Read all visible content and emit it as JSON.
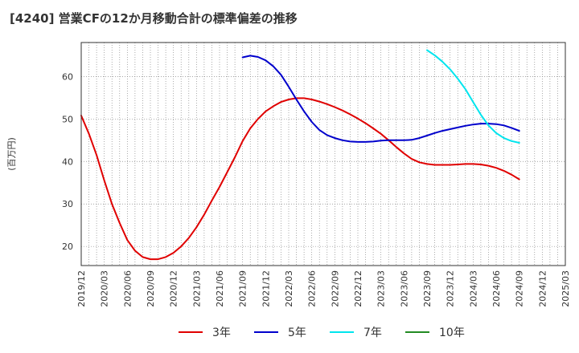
{
  "chart_data": {
    "type": "line",
    "title": "[4240]  営業CFの12か月移動合計の標準偏差の推移",
    "ylabel": "(百万円)",
    "xlabel": "",
    "ylim": [
      15.5,
      68
    ],
    "yticks": [
      20,
      30,
      40,
      50,
      60
    ],
    "xticks": [
      "2019/12",
      "2020/03",
      "2020/06",
      "2020/09",
      "2020/12",
      "2021/03",
      "2021/06",
      "2021/09",
      "2021/12",
      "2022/03",
      "2022/06",
      "2022/09",
      "2022/12",
      "2023/03",
      "2023/06",
      "2023/09",
      "2023/12",
      "2024/03",
      "2024/06",
      "2024/09",
      "2024/12",
      "2025/03"
    ],
    "grid": true,
    "legend_position": "bottom",
    "series": [
      {
        "name": "3年",
        "color": "#e00000",
        "x": [
          "2019/12",
          "2020/01",
          "2020/02",
          "2020/03",
          "2020/04",
          "2020/05",
          "2020/06",
          "2020/07",
          "2020/08",
          "2020/09",
          "2020/10",
          "2020/11",
          "2020/12",
          "2021/01",
          "2021/02",
          "2021/03",
          "2021/04",
          "2021/05",
          "2021/06",
          "2021/07",
          "2021/08",
          "2021/09",
          "2021/10",
          "2021/11",
          "2021/12",
          "2022/01",
          "2022/02",
          "2022/03",
          "2022/04",
          "2022/05",
          "2022/06",
          "2022/07",
          "2022/08",
          "2022/09",
          "2022/10",
          "2022/11",
          "2022/12",
          "2023/01",
          "2023/02",
          "2023/03",
          "2023/04",
          "2023/05",
          "2023/06",
          "2023/07",
          "2023/08",
          "2023/09",
          "2023/10",
          "2023/11",
          "2023/12",
          "2024/01",
          "2024/02",
          "2024/03",
          "2024/04",
          "2024/05",
          "2024/06",
          "2024/07",
          "2024/08",
          "2024/09"
        ],
        "values": [
          50.8,
          46.5,
          41.5,
          35.5,
          30.0,
          25.5,
          21.5,
          19.0,
          17.5,
          17.0,
          17.0,
          17.5,
          18.5,
          20.0,
          22.0,
          24.5,
          27.5,
          30.8,
          34.0,
          37.5,
          41.0,
          44.8,
          47.8,
          50.0,
          51.8,
          53.0,
          54.0,
          54.6,
          54.9,
          54.9,
          54.6,
          54.1,
          53.5,
          52.8,
          52.0,
          51.1,
          50.1,
          49.0,
          47.8,
          46.5,
          45.0,
          43.4,
          41.9,
          40.6,
          39.8,
          39.4,
          39.2,
          39.2,
          39.2,
          39.3,
          39.4,
          39.4,
          39.3,
          39.0,
          38.5,
          37.8,
          36.9,
          35.8
        ]
      },
      {
        "name": "5年",
        "color": "#0000cc",
        "x": [
          "2021/09",
          "2021/10",
          "2021/11",
          "2021/12",
          "2022/01",
          "2022/02",
          "2022/03",
          "2022/04",
          "2022/05",
          "2022/06",
          "2022/07",
          "2022/08",
          "2022/09",
          "2022/10",
          "2022/11",
          "2022/12",
          "2023/01",
          "2023/02",
          "2023/03",
          "2023/04",
          "2023/05",
          "2023/06",
          "2023/07",
          "2023/08",
          "2023/09",
          "2023/10",
          "2023/11",
          "2023/12",
          "2024/01",
          "2024/02",
          "2024/03",
          "2024/04",
          "2024/05",
          "2024/06",
          "2024/07",
          "2024/08",
          "2024/09"
        ],
        "values": [
          64.5,
          64.9,
          64.6,
          63.8,
          62.4,
          60.4,
          57.6,
          54.6,
          51.8,
          49.3,
          47.4,
          46.2,
          45.5,
          45.0,
          44.7,
          44.6,
          44.6,
          44.7,
          44.9,
          45.0,
          45.0,
          45.0,
          45.1,
          45.5,
          46.1,
          46.7,
          47.2,
          47.6,
          48.0,
          48.4,
          48.7,
          48.9,
          48.9,
          48.8,
          48.5,
          47.9,
          47.2
        ]
      },
      {
        "name": "7年",
        "color": "#00e5ee",
        "x": [
          "2023/09",
          "2023/10",
          "2023/11",
          "2023/12",
          "2024/01",
          "2024/02",
          "2024/03",
          "2024/04",
          "2024/05",
          "2024/06",
          "2024/07",
          "2024/08",
          "2024/09"
        ],
        "values": [
          66.2,
          65.0,
          63.5,
          61.7,
          59.5,
          57.0,
          54.0,
          51.0,
          48.5,
          46.7,
          45.5,
          44.8,
          44.4
        ]
      },
      {
        "name": "10年",
        "color": "#228b22",
        "x": [],
        "values": []
      }
    ]
  }
}
